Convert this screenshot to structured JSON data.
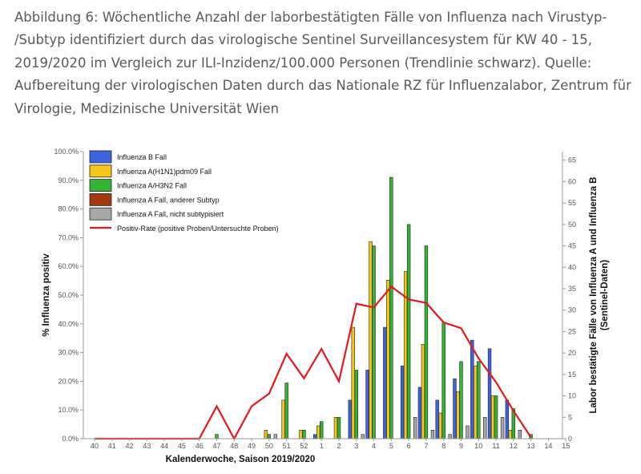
{
  "caption": {
    "lines": [
      "Abbildung 6: Wöchentliche Anzahl der laborbestätigten Fälle von Influenza nach Virustyp-",
      "/Subtyp identifiziert durch das virologische Sentinel Surveillancesystem für KW 40 - 15,",
      "2019/2020 im Vergleich zur ILI-Inzidenz/100.000 Personen (Trendlinie schwarz). Quelle:",
      "Aufbereitung der virologischen Daten durch das Nationale RZ für Influenzalabor, Zentrum für",
      "Virologie, Medizinische Universität Wien"
    ]
  },
  "chart_data": {
    "type": "bar",
    "title": "",
    "xlabel": "Kalenderwoche, Saison 2019/2020",
    "ylabel": "% Influenza positiv",
    "y2label_lines": [
      "Labor bestätigte Fälle von Influenza A und Influenza B",
      "(Sentinel-Daten)"
    ],
    "ylim": [
      0,
      100
    ],
    "y2lim": [
      0,
      67
    ],
    "yticks": [
      "0.0%",
      "10.0%",
      "20.0%",
      "30.0%",
      "40.0%",
      "50.0%",
      "60.0%",
      "70.0%",
      "80.0%",
      "90.0%",
      "100.0%"
    ],
    "y2ticks": [
      0,
      5,
      10,
      15,
      20,
      25,
      30,
      35,
      40,
      45,
      50,
      55,
      60,
      65
    ],
    "legend_position": "top-left",
    "categories": [
      "40",
      "41",
      "42",
      "43",
      "44",
      "45",
      "46",
      "47",
      "48",
      "49",
      "50",
      "51",
      "52",
      "1",
      "2",
      "3",
      "4",
      "5",
      "6",
      "7",
      "8",
      "9",
      "10",
      "11",
      "12",
      "13",
      "14",
      "15"
    ],
    "series": [
      {
        "name": "Influenza B Fall",
        "color": "#3c64e0",
        "axis": "right",
        "values": [
          0,
          0,
          0,
          0,
          0,
          0,
          0,
          0,
          0,
          0,
          0,
          0,
          0,
          1,
          0,
          9,
          16,
          26,
          17,
          12,
          9,
          14,
          23,
          21,
          9,
          0,
          0,
          0
        ]
      },
      {
        "name": "Influenza A(H1N1)pdm09 Fall",
        "color": "#f5c518",
        "axis": "right",
        "values": [
          0,
          0,
          0,
          0,
          0,
          0,
          0,
          0,
          0,
          0,
          2,
          9,
          2,
          3,
          5,
          26,
          46,
          37,
          39,
          22,
          6,
          11,
          17,
          10,
          2,
          0,
          0,
          0
        ]
      },
      {
        "name": "Influenza A/H3N2 Fall",
        "color": "#33b533",
        "axis": "right",
        "values": [
          0,
          0,
          0,
          0,
          0,
          0,
          0,
          1,
          0,
          0,
          1,
          13,
          2,
          4,
          5,
          16,
          45,
          61,
          50,
          45,
          27,
          18,
          18,
          10,
          7,
          1,
          0,
          0
        ]
      },
      {
        "name": "Influenza A Fall, anderer Subtyp",
        "color": "#a33a0f",
        "axis": "right",
        "values": [
          0,
          0,
          0,
          0,
          0,
          0,
          0,
          0,
          0,
          0,
          0,
          0,
          0,
          0,
          0,
          0,
          0,
          0,
          0,
          0,
          0,
          0,
          0,
          0,
          0,
          0,
          0,
          0
        ]
      },
      {
        "name": "Influenza A Fall, nicht subtypisiert",
        "color": "#a8a8a8",
        "axis": "right",
        "values": [
          0,
          0,
          0,
          0,
          0,
          0,
          0,
          0,
          0,
          0,
          1,
          0,
          0,
          0,
          0,
          1,
          0,
          0,
          5,
          2,
          1,
          3,
          5,
          5,
          2,
          0,
          0,
          0
        ]
      },
      {
        "name": "Positiv-Rate (positive Proben/Untersuchte Proben)",
        "color": "#e31a1c",
        "type": "line",
        "axis": "left",
        "values": [
          0,
          0,
          0,
          0,
          0,
          0,
          0,
          11.3,
          0,
          11.3,
          15.7,
          29.6,
          21.0,
          31.3,
          20.0,
          47.0,
          45.7,
          53.0,
          48.5,
          47.3,
          40.5,
          38.5,
          28.0,
          19.7,
          9.7,
          0.5,
          null,
          null
        ]
      }
    ]
  }
}
